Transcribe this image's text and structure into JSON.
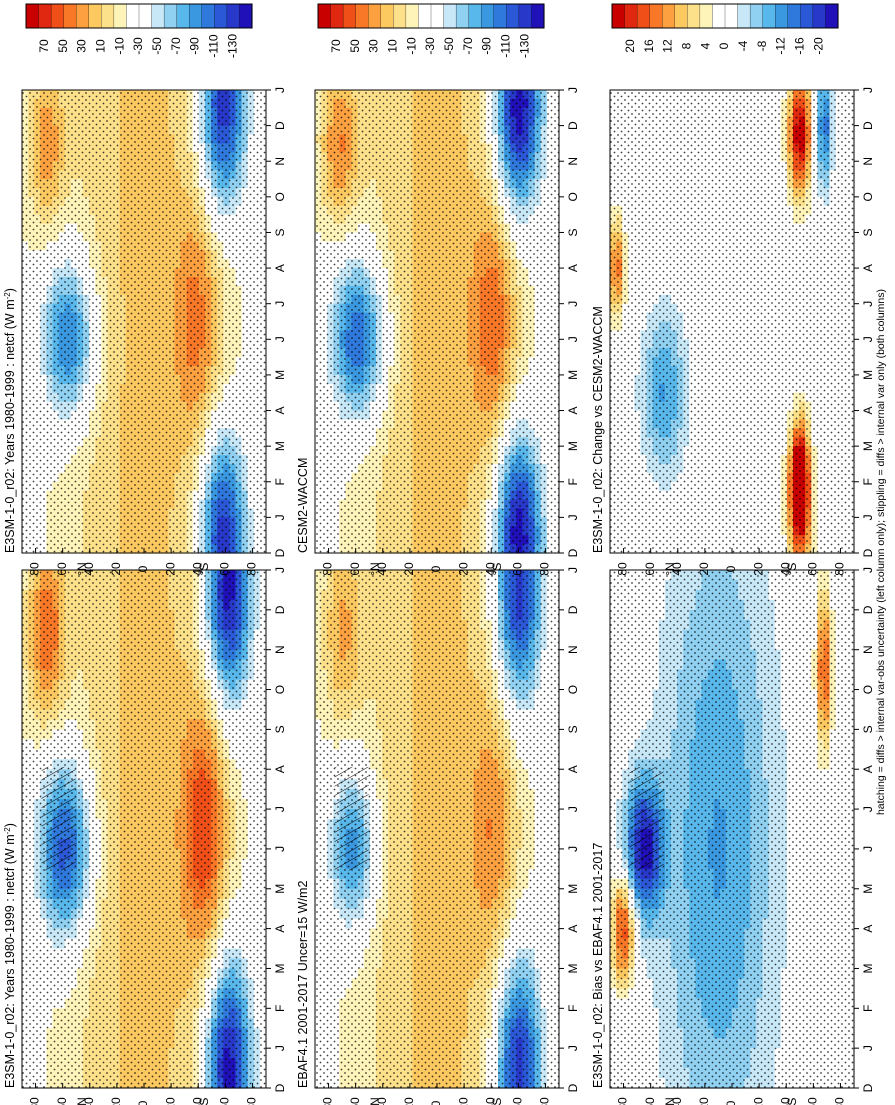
{
  "figure": {
    "footnote": "hatching = diffs > internal var-obs uncertainty (left column only); stippling = diffs > internal var only (both columns)"
  },
  "colors": {
    "abs_scale": [
      "#c80000",
      "#e02810",
      "#f05018",
      "#f87828",
      "#fca040",
      "#fcc860",
      "#fde08a",
      "#fef3b8",
      "#ffffff",
      "#ffffff",
      "#c8e8f8",
      "#90d0f0",
      "#58b8ec",
      "#3a98e0",
      "#2f78dc",
      "#2a58d6",
      "#2838c8",
      "#2010b8"
    ],
    "diff_scale": [
      "#c80000",
      "#e02810",
      "#f05018",
      "#f87828",
      "#fca040",
      "#fcc860",
      "#fde08a",
      "#fef3b8",
      "#ffffff",
      "#ffffff",
      "#c8e8f8",
      "#90d0f0",
      "#58b8ec",
      "#3a98e0",
      "#2f78dc",
      "#2a58d6",
      "#2838c8",
      "#2010b8"
    ]
  },
  "chart_data": [
    {
      "id": "p1",
      "type": "heatmap",
      "title": "E3SM-1-0_r02: Years 1980-1999 : netcf (W m",
      "title_sup": "-2",
      "title_close": ")",
      "x_ticks": [
        "D",
        "J",
        "F",
        "M",
        "A",
        "M",
        "J",
        "J",
        "A",
        "S",
        "O",
        "N",
        "D",
        "J"
      ],
      "y_ticks": [
        "80",
        "60",
        "40",
        "20",
        "0",
        "20",
        "40",
        "60",
        "80"
      ],
      "y_hemi": [
        "°N",
        "°S"
      ],
      "colorbar_labels": [
        "70",
        "50",
        "30",
        "10",
        "-10",
        "-30",
        "-50",
        "-70",
        "-90",
        "-110",
        "-130"
      ],
      "value_range": [
        -140,
        80
      ],
      "fields": [
        {
          "lat": -62,
          "month": 0.5,
          "amp": -120,
          "slat": 12,
          "smon": 2.0
        },
        {
          "lat": -62,
          "month": 12.5,
          "amp": -120,
          "slat": 12,
          "smon": 2.0
        },
        {
          "lat": 58,
          "month": 6.0,
          "amp": -95,
          "slat": 14,
          "smon": 1.6
        },
        {
          "lat": 72,
          "month": 11.5,
          "amp": 60,
          "slat": 10,
          "smon": 1.6
        },
        {
          "lat": -45,
          "month": 6.5,
          "amp": 60,
          "slat": 12,
          "smon": 2.4
        }
      ],
      "hatched": true
    },
    {
      "id": "p2",
      "type": "heatmap",
      "title": "E3SM-1-0_r02: Years 1980-1999 : netcf (W m",
      "title_sup": "-2",
      "title_close": ")",
      "x_ticks": [
        "D",
        "J",
        "F",
        "M",
        "A",
        "M",
        "J",
        "J",
        "A",
        "S",
        "O",
        "N",
        "D",
        "J"
      ],
      "y_ticks": [
        "80",
        "60",
        "40",
        "20",
        "0",
        "20",
        "40",
        "60",
        "80"
      ],
      "y_hemi": [
        "°N",
        "°S"
      ],
      "colorbar_labels": [
        "70",
        "50",
        "30",
        "10",
        "-10",
        "-30",
        "-50",
        "-70",
        "-90",
        "-110",
        "-130"
      ],
      "value_range": [
        -140,
        80
      ],
      "fields": [
        {
          "lat": -58,
          "month": 0.5,
          "amp": -110,
          "slat": 12,
          "smon": 2.0
        },
        {
          "lat": -58,
          "month": 12.5,
          "amp": -110,
          "slat": 12,
          "smon": 2.0
        },
        {
          "lat": 55,
          "month": 6.0,
          "amp": -80,
          "slat": 14,
          "smon": 1.6
        },
        {
          "lat": 72,
          "month": 11.5,
          "amp": 45,
          "slat": 10,
          "smon": 1.6
        },
        {
          "lat": -40,
          "month": 6.5,
          "amp": 40,
          "slat": 12,
          "smon": 2.4
        }
      ],
      "hatched": false
    },
    {
      "id": "p3",
      "type": "heatmap",
      "title": "EBAF4.1 2001-2017 Uncer=15 W/m2",
      "title_sup": "",
      "title_close": "",
      "x_ticks": [
        "D",
        "J",
        "F",
        "M",
        "A",
        "M",
        "J",
        "J",
        "A",
        "S",
        "O",
        "N",
        "D",
        "J"
      ],
      "y_ticks": [
        "80",
        "60",
        "40",
        "20",
        "0",
        "20",
        "40",
        "60",
        "80"
      ],
      "y_hemi": [
        "°N",
        "°S"
      ],
      "colorbar_labels": [
        "70",
        "50",
        "30",
        "10",
        "-10",
        "-30",
        "-50",
        "-70",
        "-90",
        "-110",
        "-130"
      ],
      "value_range": [
        -140,
        80
      ],
      "fields": [
        {
          "lat": -60,
          "month": 0.5,
          "amp": -110,
          "slat": 12,
          "smon": 2.0
        },
        {
          "lat": -60,
          "month": 12.5,
          "amp": -110,
          "slat": 12,
          "smon": 2.0
        },
        {
          "lat": 62,
          "month": 6.0,
          "amp": -70,
          "slat": 12,
          "smon": 1.4
        },
        {
          "lat": 70,
          "month": 11.5,
          "amp": 40,
          "slat": 10,
          "smon": 1.6
        },
        {
          "lat": -42,
          "month": 6.5,
          "amp": 35,
          "slat": 12,
          "smon": 2.4
        }
      ],
      "hatched": true
    },
    {
      "id": "p4",
      "type": "heatmap",
      "title": "CESM2-WACCM",
      "title_sup": "",
      "title_close": "",
      "x_ticks": [
        "D",
        "J",
        "F",
        "M",
        "A",
        "M",
        "J",
        "J",
        "A",
        "S",
        "O",
        "N",
        "D",
        "J"
      ],
      "y_ticks": [
        "80",
        "60",
        "40",
        "20",
        "0",
        "20",
        "40",
        "60",
        "80"
      ],
      "y_hemi": [
        "°N",
        "°S"
      ],
      "colorbar_labels": [
        "70",
        "50",
        "30",
        "10",
        "-10",
        "-30",
        "-50",
        "-70",
        "-90",
        "-110",
        "-130"
      ],
      "value_range": [
        -140,
        80
      ],
      "fields": [
        {
          "lat": -60,
          "month": 0.5,
          "amp": -125,
          "slat": 12,
          "smon": 2.0
        },
        {
          "lat": -60,
          "month": 12.5,
          "amp": -125,
          "slat": 12,
          "smon": 2.0
        },
        {
          "lat": 58,
          "month": 6.0,
          "amp": -90,
          "slat": 14,
          "smon": 1.6
        },
        {
          "lat": 72,
          "month": 11.5,
          "amp": 50,
          "slat": 10,
          "smon": 1.6
        },
        {
          "lat": -42,
          "month": 6.5,
          "amp": 45,
          "slat": 12,
          "smon": 2.4
        }
      ],
      "hatched": false
    },
    {
      "id": "p5",
      "type": "heatmap",
      "title": "E3SM-1-0_r02: Bias vs EBAF4.1 2001-2017",
      "title_sup": "",
      "title_close": "",
      "x_ticks": [
        "D",
        "J",
        "F",
        "M",
        "A",
        "M",
        "J",
        "J",
        "A",
        "S",
        "O",
        "N",
        "D",
        "J"
      ],
      "y_ticks": [
        "80",
        "60",
        "40",
        "20",
        "0",
        "20",
        "40",
        "60",
        "80"
      ],
      "y_hemi": [
        "°N",
        "°S"
      ],
      "colorbar_labels": [
        "20",
        "16",
        "12",
        "8",
        "4",
        "0",
        "-4",
        "-8",
        "-12",
        "-16",
        "-20"
      ],
      "value_range": [
        -22,
        22
      ],
      "fields": [
        {
          "lat": 65,
          "month": 6.0,
          "amp": -20,
          "slat": 10,
          "smon": 1.2
        },
        {
          "lat": 80,
          "month": 4.0,
          "amp": 18,
          "slat": 6,
          "smon": 1.0
        },
        {
          "lat": 10,
          "month": 6.0,
          "amp": -10,
          "slat": 30,
          "smon": 6.0
        },
        {
          "lat": -68,
          "month": 10.5,
          "amp": 16,
          "slat": 4,
          "smon": 1.4
        }
      ],
      "hatched": true
    },
    {
      "id": "p6",
      "type": "heatmap",
      "title": "E3SM-1-0_r02: Change vs CESM2-WACCM",
      "title_sup": "",
      "title_close": "",
      "x_ticks": [
        "D",
        "J",
        "F",
        "M",
        "A",
        "M",
        "J",
        "J",
        "A",
        "S",
        "O",
        "N",
        "D",
        "J"
      ],
      "y_ticks": [
        "80",
        "60",
        "40",
        "20",
        "0",
        "20",
        "40",
        "60",
        "80"
      ],
      "y_hemi": [
        "°N",
        "°S"
      ],
      "colorbar_labels": [
        "20",
        "16",
        "12",
        "8",
        "4",
        "0",
        "-4",
        "-8",
        "-12",
        "-16",
        "-20"
      ],
      "value_range": [
        -22,
        22
      ],
      "fields": [
        {
          "lat": -50,
          "month": 1.2,
          "amp": 20,
          "slat": 6,
          "smon": 1.2
        },
        {
          "lat": -50,
          "month": 11.8,
          "amp": 22,
          "slat": 6,
          "smon": 1.2
        },
        {
          "lat": -50,
          "month": 2.5,
          "amp": 16,
          "slat": 5,
          "smon": 1.0
        },
        {
          "lat": 50,
          "month": 4.5,
          "amp": -10,
          "slat": 12,
          "smon": 1.6
        },
        {
          "lat": -68,
          "month": 12.0,
          "amp": -14,
          "slat": 4,
          "smon": 1.2
        },
        {
          "lat": 85,
          "month": 8.0,
          "amp": 14,
          "slat": 4,
          "smon": 1.0
        }
      ],
      "hatched": false
    }
  ]
}
